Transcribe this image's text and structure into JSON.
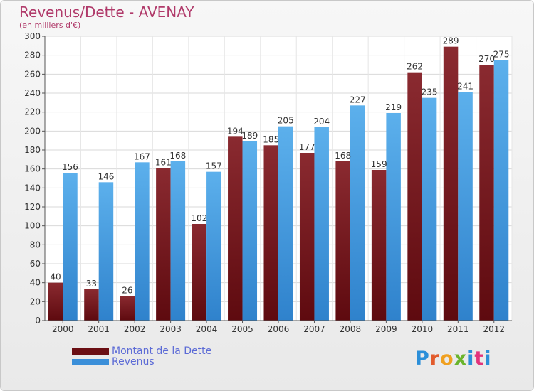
{
  "header": {
    "title": "Revenus/Dette - AVENAY",
    "subtitle": "(en milliers d'€)"
  },
  "colors": {
    "dette": "#7a1f24",
    "revenus": "#4da3e6"
  },
  "legend": {
    "items": [
      {
        "label": "Montant de la Dette",
        "color": "#6b0f14"
      },
      {
        "label": "Revenus",
        "color": "#3b8fd9"
      }
    ]
  },
  "logo": {
    "text": "Proxiti",
    "letter_colors": [
      "#2b8fd9",
      "#e25b2c",
      "#f0a020",
      "#6ab42d",
      "#2b8fd9",
      "#e2347c",
      "#2b8fd9"
    ]
  },
  "chart_data": {
    "type": "bar",
    "title": "Revenus/Dette - AVENAY",
    "subtitle": "(en milliers d'€)",
    "categories": [
      "2000",
      "2001",
      "2002",
      "2003",
      "2004",
      "2005",
      "2006",
      "2007",
      "2008",
      "2009",
      "2010",
      "2011",
      "2012"
    ],
    "series": [
      {
        "name": "Montant de la Dette",
        "values": [
          40,
          33,
          26,
          161,
          102,
          194,
          185,
          177,
          168,
          159,
          262,
          289,
          270
        ]
      },
      {
        "name": "Revenus",
        "values": [
          156,
          146,
          167,
          168,
          157,
          189,
          205,
          204,
          227,
          219,
          235,
          241,
          275
        ]
      }
    ],
    "ylim": [
      0,
      300
    ],
    "yticks": [
      0,
      20,
      40,
      60,
      80,
      100,
      120,
      140,
      160,
      180,
      200,
      220,
      240,
      260,
      280,
      300
    ],
    "grid": true,
    "legend_position": "bottom-left"
  }
}
